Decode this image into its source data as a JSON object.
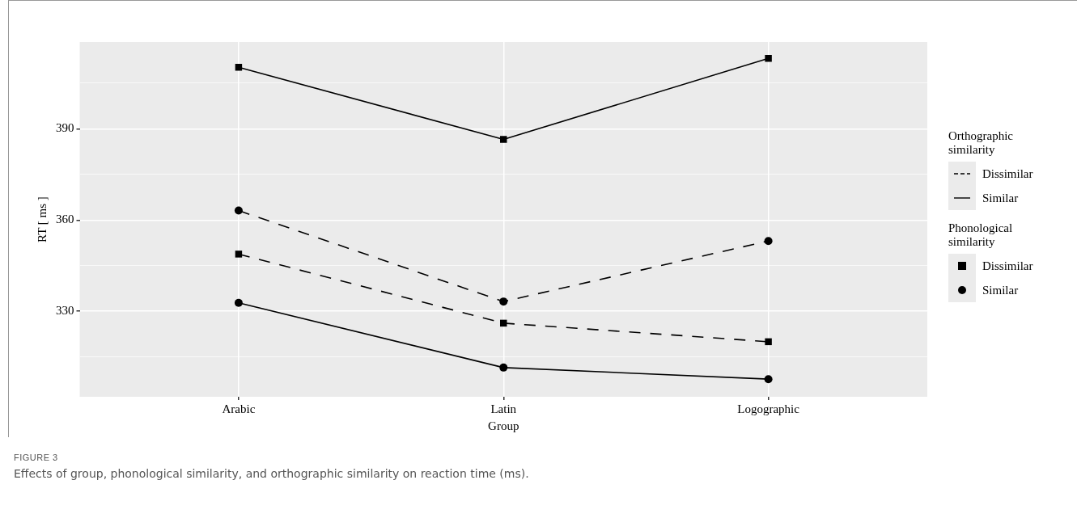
{
  "chart_data": {
    "type": "line",
    "xlabel": "Group",
    "ylabel": "RT [ ms ]",
    "categories": [
      "Arabic",
      "Latin",
      "Logographic"
    ],
    "series": [
      {
        "color": "#000000",
        "line_style": "solid",
        "marker": "square",
        "values": [
          410.2,
          386.5,
          413.1
        ]
      },
      {
        "color": "#000000",
        "line_style": "dashed",
        "marker": "circle",
        "values": [
          363.1,
          333.2,
          353.1
        ]
      },
      {
        "color": "#000000",
        "line_style": "dashed",
        "marker": "square",
        "values": [
          348.8,
          326.1,
          320.0
        ]
      },
      {
        "color": "#000000",
        "line_style": "solid",
        "marker": "circle",
        "values": [
          332.8,
          311.5,
          307.7
        ]
      }
    ],
    "ylim": [
      301.9,
      418.5
    ],
    "yticks": [
      {
        "value": 315,
        "label": null
      },
      330,
      {
        "value": 345,
        "label": null
      },
      360,
      {
        "value": 375,
        "label": null
      },
      390,
      {
        "value": 405,
        "label": null
      }
    ],
    "grid": true,
    "annotations": [
      "Orthographic similarity",
      "Dissimilar",
      "Similar",
      "Phonological similarity",
      "Dissimilar",
      "Similar",
      "FIGURE 3",
      "Effects of group, phonological similarity, and orthographic similarity on reaction time (ms)."
    ]
  }
}
